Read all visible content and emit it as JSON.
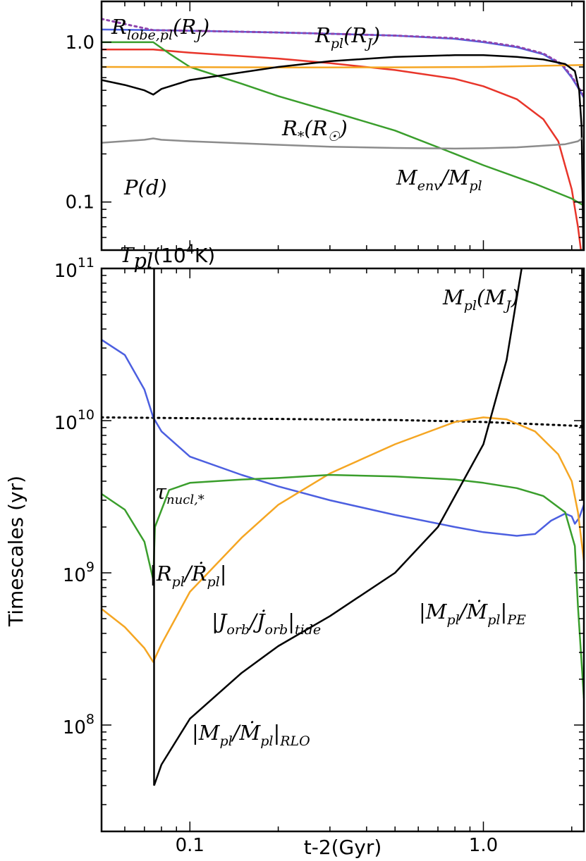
{
  "chart_data": [
    {
      "type": "line",
      "panel": "top",
      "x_scale": "log",
      "y_scale": "log",
      "xlim": [
        0.05,
        2.2
      ],
      "ylim": [
        0.05,
        1.8
      ],
      "yticks": [
        {
          "value": 0.1,
          "label": "0.1"
        },
        {
          "value": 1.0,
          "label": "1.0"
        }
      ],
      "series": [
        {
          "name": "R_pl(R_J)",
          "color": "#4c5fe0",
          "style": "solid",
          "points": [
            [
              0.05,
              1.2
            ],
            [
              0.075,
              1.19
            ],
            [
              0.1,
              1.18
            ],
            [
              0.2,
              1.15
            ],
            [
              0.3,
              1.13
            ],
            [
              0.5,
              1.1
            ],
            [
              0.8,
              1.05
            ],
            [
              1.0,
              1.0
            ],
            [
              1.3,
              0.93
            ],
            [
              1.6,
              0.84
            ],
            [
              1.85,
              0.72
            ],
            [
              2.0,
              0.6
            ],
            [
              2.1,
              0.52
            ],
            [
              2.2,
              0.45
            ]
          ]
        },
        {
          "name": "R_lobe,pl(R_J)",
          "color": "#8e44ad",
          "style": "dotted",
          "points": [
            [
              0.05,
              1.4
            ],
            [
              0.06,
              1.3
            ],
            [
              0.075,
              1.19
            ],
            [
              0.1,
              1.18
            ],
            [
              0.2,
              1.15
            ],
            [
              0.3,
              1.13
            ],
            [
              0.5,
              1.1
            ],
            [
              0.8,
              1.06
            ],
            [
              1.0,
              1.01
            ],
            [
              1.3,
              0.94
            ],
            [
              1.6,
              0.85
            ],
            [
              1.85,
              0.73
            ],
            [
              2.0,
              0.61
            ],
            [
              2.1,
              0.53
            ],
            [
              2.2,
              0.46
            ]
          ]
        },
        {
          "name": "M_env/M_pl",
          "color": "#e8352a",
          "style": "solid",
          "points": [
            [
              0.05,
              0.9
            ],
            [
              0.075,
              0.9
            ],
            [
              0.1,
              0.86
            ],
            [
              0.2,
              0.79
            ],
            [
              0.3,
              0.74
            ],
            [
              0.5,
              0.67
            ],
            [
              0.8,
              0.59
            ],
            [
              1.0,
              0.53
            ],
            [
              1.3,
              0.44
            ],
            [
              1.6,
              0.33
            ],
            [
              1.8,
              0.24
            ],
            [
              2.0,
              0.12
            ],
            [
              2.1,
              0.07
            ],
            [
              2.15,
              0.05
            ]
          ]
        },
        {
          "name": "M_pl(M_J)",
          "color": "#3a9e2c",
          "style": "solid",
          "points": [
            [
              0.05,
              1.0
            ],
            [
              0.075,
              1.0
            ],
            [
              0.085,
              0.85
            ],
            [
              0.1,
              0.7
            ],
            [
              0.15,
              0.55
            ],
            [
              0.2,
              0.46
            ],
            [
              0.3,
              0.37
            ],
            [
              0.5,
              0.28
            ],
            [
              0.8,
              0.2
            ],
            [
              1.0,
              0.17
            ],
            [
              1.5,
              0.13
            ],
            [
              2.0,
              0.105
            ],
            [
              2.2,
              0.095
            ]
          ]
        },
        {
          "name": "R_*(R_sun)",
          "color": "#f5a623",
          "style": "solid",
          "points": [
            [
              0.05,
              0.7
            ],
            [
              0.2,
              0.695
            ],
            [
              0.5,
              0.696
            ],
            [
              1.0,
              0.7
            ],
            [
              1.5,
              0.71
            ],
            [
              2.2,
              0.72
            ]
          ]
        },
        {
          "name": "P(d)",
          "color": "#000000",
          "style": "solid",
          "points": [
            [
              0.05,
              0.58
            ],
            [
              0.06,
              0.54
            ],
            [
              0.07,
              0.5
            ],
            [
              0.075,
              0.47
            ],
            [
              0.08,
              0.51
            ],
            [
              0.1,
              0.58
            ],
            [
              0.2,
              0.7
            ],
            [
              0.3,
              0.76
            ],
            [
              0.5,
              0.81
            ],
            [
              0.8,
              0.83
            ],
            [
              1.0,
              0.83
            ],
            [
              1.3,
              0.81
            ],
            [
              1.6,
              0.78
            ],
            [
              1.9,
              0.73
            ],
            [
              2.05,
              0.66
            ],
            [
              2.12,
              0.5
            ],
            [
              2.16,
              0.3
            ],
            [
              2.18,
              0.1
            ],
            [
              2.19,
              0.05
            ]
          ]
        },
        {
          "name": "T_pl(10^4 K)",
          "color": "#8c8c8c",
          "style": "solid",
          "points": [
            [
              0.05,
              0.235
            ],
            [
              0.07,
              0.245
            ],
            [
              0.075,
              0.25
            ],
            [
              0.08,
              0.245
            ],
            [
              0.1,
              0.24
            ],
            [
              0.2,
              0.228
            ],
            [
              0.3,
              0.222
            ],
            [
              0.5,
              0.218
            ],
            [
              0.8,
              0.216
            ],
            [
              1.0,
              0.217
            ],
            [
              1.3,
              0.22
            ],
            [
              1.6,
              0.225
            ],
            [
              1.9,
              0.23
            ],
            [
              2.1,
              0.24
            ],
            [
              2.2,
              0.255
            ]
          ]
        }
      ],
      "labels": {
        "r_lobe": "R_lobe,pl(R_J)",
        "r_pl": "R_pl(R_J)",
        "r_star": "R_*(R_sun)",
        "period": "P(d)",
        "m_env": "M_env/M_pl",
        "t_pl": "T_pl(10^4K)",
        "m_pl": "M_pl(M_J)"
      }
    },
    {
      "type": "line",
      "panel": "bottom",
      "x_scale": "log",
      "y_scale": "log",
      "xlim": [
        0.05,
        2.2
      ],
      "ylim": [
        20000000,
        100000000000
      ],
      "ylabel": "Timescales (yr)",
      "xlabel": "t-2(Gyr)",
      "xticks": [
        {
          "value": 0.1,
          "label": "0.1"
        },
        {
          "value": 1.0,
          "label": "1.0"
        }
      ],
      "yticks": [
        {
          "value": 100000000,
          "base": "10",
          "exp": "8"
        },
        {
          "value": 1000000000,
          "base": "10",
          "exp": "9"
        },
        {
          "value": 10000000000,
          "base": "10",
          "exp": "10"
        },
        {
          "value": 100000000000,
          "base": "10",
          "exp": "11"
        }
      ],
      "series": [
        {
          "name": "tau_nucl,*",
          "color": "#000000",
          "style": "dotted",
          "points": [
            [
              0.05,
              10500000000
            ],
            [
              0.5,
              10100000000
            ],
            [
              1.0,
              9800000000
            ],
            [
              2.2,
              9200000000
            ]
          ]
        },
        {
          "name": "|R_pl/Rdot_pl|",
          "color": "#4c5fe0",
          "style": "solid",
          "points": [
            [
              0.05,
              34000000000
            ],
            [
              0.06,
              27000000000
            ],
            [
              0.07,
              16000000000
            ],
            [
              0.075,
              10500000000
            ],
            [
              0.08,
              8500000000
            ],
            [
              0.1,
              5800000000
            ],
            [
              0.15,
              4400000000
            ],
            [
              0.2,
              3700000000
            ],
            [
              0.3,
              3000000000
            ],
            [
              0.5,
              2400000000
            ],
            [
              0.8,
              2000000000
            ],
            [
              1.0,
              1850000000
            ],
            [
              1.3,
              1750000000
            ],
            [
              1.5,
              1800000000
            ],
            [
              1.7,
              2200000000
            ],
            [
              1.9,
              2450000000
            ],
            [
              2.0,
              2350000000
            ],
            [
              2.05,
              2100000000
            ],
            [
              2.12,
              2300000000
            ],
            [
              2.2,
              2800000000
            ]
          ]
        },
        {
          "name": "|J_orb/Jdot_orb|_tide",
          "color": "#f5a623",
          "style": "solid",
          "points": [
            [
              0.05,
              580000000
            ],
            [
              0.06,
              440000000
            ],
            [
              0.07,
              320000000
            ],
            [
              0.075,
              260000000
            ],
            [
              0.08,
              340000000
            ],
            [
              0.1,
              750000000
            ],
            [
              0.15,
              1700000000
            ],
            [
              0.2,
              2800000000
            ],
            [
              0.3,
              4500000000
            ],
            [
              0.5,
              7000000000
            ],
            [
              0.8,
              9800000000
            ],
            [
              1.0,
              10500000000
            ],
            [
              1.2,
              10200000000
            ],
            [
              1.5,
              8500000000
            ],
            [
              1.8,
              6000000000
            ],
            [
              2.0,
              4000000000
            ],
            [
              2.1,
              2500000000
            ],
            [
              2.2,
              1200000000
            ]
          ]
        },
        {
          "name": "|M_pl/Mdot_pl|_PE",
          "color": "#3a9e2c",
          "style": "solid",
          "points": [
            [
              0.05,
              3300000000
            ],
            [
              0.06,
              2600000000
            ],
            [
              0.07,
              1600000000
            ],
            [
              0.075,
              900000000
            ],
            [
              0.076,
              2000000000
            ],
            [
              0.085,
              3500000000
            ],
            [
              0.1,
              3900000000
            ],
            [
              0.15,
              4100000000
            ],
            [
              0.2,
              4200000000
            ],
            [
              0.3,
              4400000000
            ],
            [
              0.5,
              4300000000
            ],
            [
              0.8,
              4100000000
            ],
            [
              1.0,
              3900000000
            ],
            [
              1.3,
              3600000000
            ],
            [
              1.6,
              3200000000
            ],
            [
              1.9,
              2500000000
            ],
            [
              2.05,
              1500000000
            ],
            [
              2.1,
              600000000
            ],
            [
              2.2,
              150000000
            ]
          ]
        },
        {
          "name": "|M_pl/Mdot_pl|_RLO",
          "color": "#000000",
          "style": "solid",
          "points": [
            [
              0.0755,
              40000000
            ],
            [
              0.08,
              55000000
            ],
            [
              0.1,
              110000000
            ],
            [
              0.15,
              220000000
            ],
            [
              0.2,
              330000000
            ],
            [
              0.3,
              520000000
            ],
            [
              0.5,
              1000000000
            ],
            [
              0.7,
              2000000000
            ],
            [
              1.0,
              7000000000
            ],
            [
              1.2,
              25000000000
            ],
            [
              1.35,
              100000000000
            ]
          ]
        }
      ],
      "labels": {
        "tau": "τnucl,*",
        "r_rate": "|R_pl/Ṙ_pl|",
        "j_rate": "|J_orb/J̇_orb|_tide",
        "m_pe": "|M_pl/Ṁ_pl|_PE",
        "m_rlo": "|M_pl/Ṁ_pl|_RLO"
      }
    }
  ]
}
